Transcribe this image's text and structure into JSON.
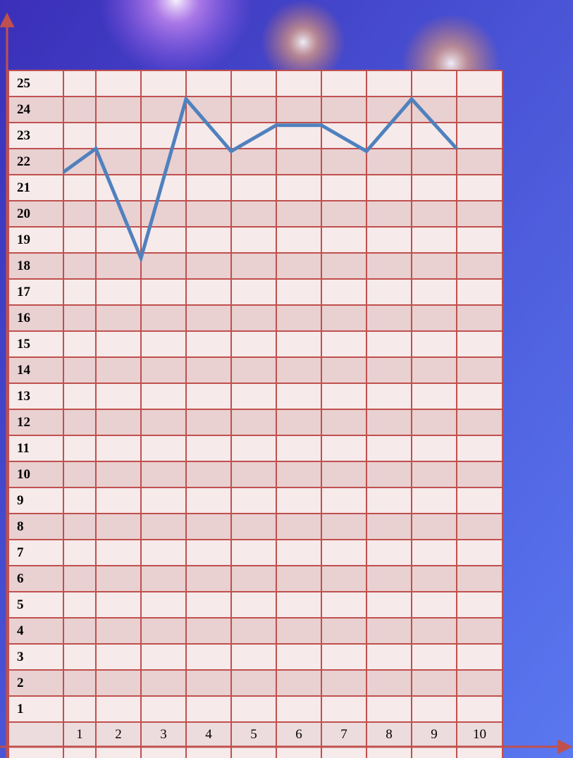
{
  "chart_data": {
    "type": "line",
    "x": [
      0.5,
      1.5,
      2.5,
      3.5,
      4.5,
      5.5,
      6.5,
      7.5,
      8.5,
      9.5
    ],
    "values": [
      21.6,
      22.5,
      18.3,
      24.4,
      22.4,
      23.4,
      23.4,
      22.4,
      24.4,
      22.5
    ],
    "color": "#4f81bd",
    "xlim": [
      0.5,
      10.5
    ],
    "xticks": [
      1,
      2,
      3,
      4,
      5,
      6,
      7,
      8,
      9,
      10
    ],
    "ylim": [
      0.5,
      25.5
    ],
    "yticks": [
      1,
      2,
      3,
      4,
      5,
      6,
      7,
      8,
      9,
      10,
      11,
      12,
      13,
      14,
      15,
      16,
      17,
      18,
      19,
      20,
      21,
      22,
      23,
      24,
      25
    ],
    "grid": true
  }
}
